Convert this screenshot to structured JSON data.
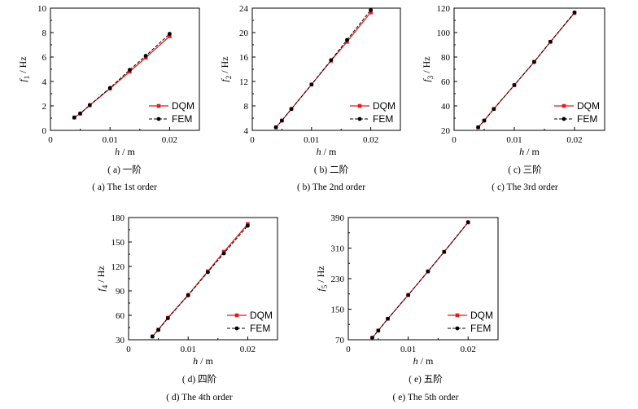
{
  "colors": {
    "dqm": "#e8191b",
    "fem": "#000000"
  },
  "legend": {
    "dqm": "DQM",
    "fem": "FEM"
  },
  "chart_data": [
    {
      "type": "line",
      "xlabel": "h",
      "xunit": "/ m",
      "ylabel": "f",
      "ysub": "1",
      "yunit": "/ Hz",
      "xlim": [
        0,
        0.025
      ],
      "xticks": [
        0,
        0.01,
        0.02
      ],
      "xticklabels": [
        "0",
        "0.01",
        "0.02"
      ],
      "ylim": [
        0,
        10
      ],
      "yticks": [
        0,
        2,
        4,
        6,
        8,
        10
      ],
      "legend_position": "bottom-right",
      "series": [
        {
          "name": "DQM",
          "x": [
            0.004,
            0.005,
            0.0066,
            0.01,
            0.0133,
            0.016,
            0.02
          ],
          "y": [
            1.05,
            1.37,
            2.05,
            3.42,
            4.8,
            5.95,
            7.7
          ]
        },
        {
          "name": "FEM",
          "x": [
            0.004,
            0.005,
            0.0066,
            0.01,
            0.0133,
            0.016,
            0.02
          ],
          "y": [
            1.05,
            1.38,
            2.07,
            3.47,
            4.95,
            6.1,
            7.9
          ]
        }
      ],
      "caption_cn": "( a)  一阶",
      "caption_en": "( a)  The 1st order"
    },
    {
      "type": "line",
      "xlabel": "h",
      "xunit": "/ m",
      "ylabel": "f",
      "ysub": "2",
      "yunit": "/ Hz",
      "xlim": [
        0,
        0.025
      ],
      "xticks": [
        0,
        0.01,
        0.02
      ],
      "xticklabels": [
        "0",
        "0.01",
        "0.02"
      ],
      "ylim": [
        4,
        24
      ],
      "yticks": [
        4,
        8,
        12,
        16,
        20,
        24
      ],
      "legend_position": "bottom-right",
      "series": [
        {
          "name": "DQM",
          "x": [
            0.004,
            0.005,
            0.0066,
            0.01,
            0.0133,
            0.016,
            0.02
          ],
          "y": [
            4.5,
            5.6,
            7.5,
            11.5,
            15.4,
            18.5,
            23.3
          ]
        },
        {
          "name": "FEM",
          "x": [
            0.004,
            0.005,
            0.0066,
            0.01,
            0.0133,
            0.016,
            0.02
          ],
          "y": [
            4.5,
            5.6,
            7.5,
            11.5,
            15.5,
            18.8,
            23.7
          ]
        }
      ],
      "caption_cn": "( b)  二阶",
      "caption_en": "( b)  The 2nd order"
    },
    {
      "type": "line",
      "xlabel": "h",
      "xunit": "/ m",
      "ylabel": "f",
      "ysub": "3",
      "yunit": "/ Hz",
      "xlim": [
        0,
        0.025
      ],
      "xticks": [
        0,
        0.01,
        0.02
      ],
      "xticklabels": [
        "0",
        "0.01",
        "0.02"
      ],
      "ylim": [
        20,
        120
      ],
      "yticks": [
        20,
        40,
        60,
        80,
        100,
        120
      ],
      "legend_position": "bottom-right",
      "series": [
        {
          "name": "DQM",
          "x": [
            0.004,
            0.005,
            0.0066,
            0.01,
            0.0133,
            0.016,
            0.02
          ],
          "y": [
            22.5,
            28,
            37.5,
            57,
            76,
            92.5,
            116
          ]
        },
        {
          "name": "FEM",
          "x": [
            0.004,
            0.005,
            0.0066,
            0.01,
            0.0133,
            0.016,
            0.02
          ],
          "y": [
            22.5,
            28,
            37.5,
            57,
            76,
            92.5,
            116.5
          ]
        }
      ],
      "caption_cn": "( c)  三阶",
      "caption_en": "( c)  The 3rd order"
    },
    {
      "type": "line",
      "xlabel": "h",
      "xunit": "/ m",
      "ylabel": "f",
      "ysub": "4",
      "yunit": "/ Hz",
      "xlim": [
        0,
        0.025
      ],
      "xticks": [
        0,
        0.01,
        0.02
      ],
      "xticklabels": [
        "0",
        "0.01",
        "0.02"
      ],
      "ylim": [
        30,
        180
      ],
      "yticks": [
        30,
        60,
        90,
        120,
        150,
        180
      ],
      "legend_position": "bottom-right",
      "series": [
        {
          "name": "DQM",
          "x": [
            0.004,
            0.005,
            0.0066,
            0.01,
            0.0133,
            0.016,
            0.02
          ],
          "y": [
            34,
            42.5,
            57,
            85,
            114,
            138,
            172
          ]
        },
        {
          "name": "FEM",
          "x": [
            0.004,
            0.005,
            0.0066,
            0.01,
            0.0133,
            0.016,
            0.02
          ],
          "y": [
            34,
            42,
            56.5,
            84.5,
            113,
            136,
            170
          ]
        }
      ],
      "caption_cn": "( d)  四阶",
      "caption_en": "( d)  The 4th order"
    },
    {
      "type": "line",
      "xlabel": "h",
      "xunit": "/ m",
      "ylabel": "f",
      "ysub": "5",
      "yunit": "/ Hz",
      "xlim": [
        0,
        0.025
      ],
      "xticks": [
        0,
        0.01,
        0.02
      ],
      "xticklabels": [
        "0",
        "0.01",
        "0.02"
      ],
      "ylim": [
        70,
        390
      ],
      "yticks": [
        70,
        150,
        230,
        310,
        390
      ],
      "legend_position": "bottom-right",
      "series": [
        {
          "name": "DQM",
          "x": [
            0.004,
            0.005,
            0.0066,
            0.01,
            0.0133,
            0.016,
            0.02
          ],
          "y": [
            75,
            94,
            125,
            187,
            249,
            300,
            377
          ]
        },
        {
          "name": "FEM",
          "x": [
            0.004,
            0.005,
            0.0066,
            0.01,
            0.0133,
            0.016,
            0.02
          ],
          "y": [
            75,
            94,
            125,
            187,
            249,
            300,
            378
          ]
        }
      ],
      "caption_cn": "( e)  五阶",
      "caption_en": "( e)  The 5th order"
    }
  ]
}
